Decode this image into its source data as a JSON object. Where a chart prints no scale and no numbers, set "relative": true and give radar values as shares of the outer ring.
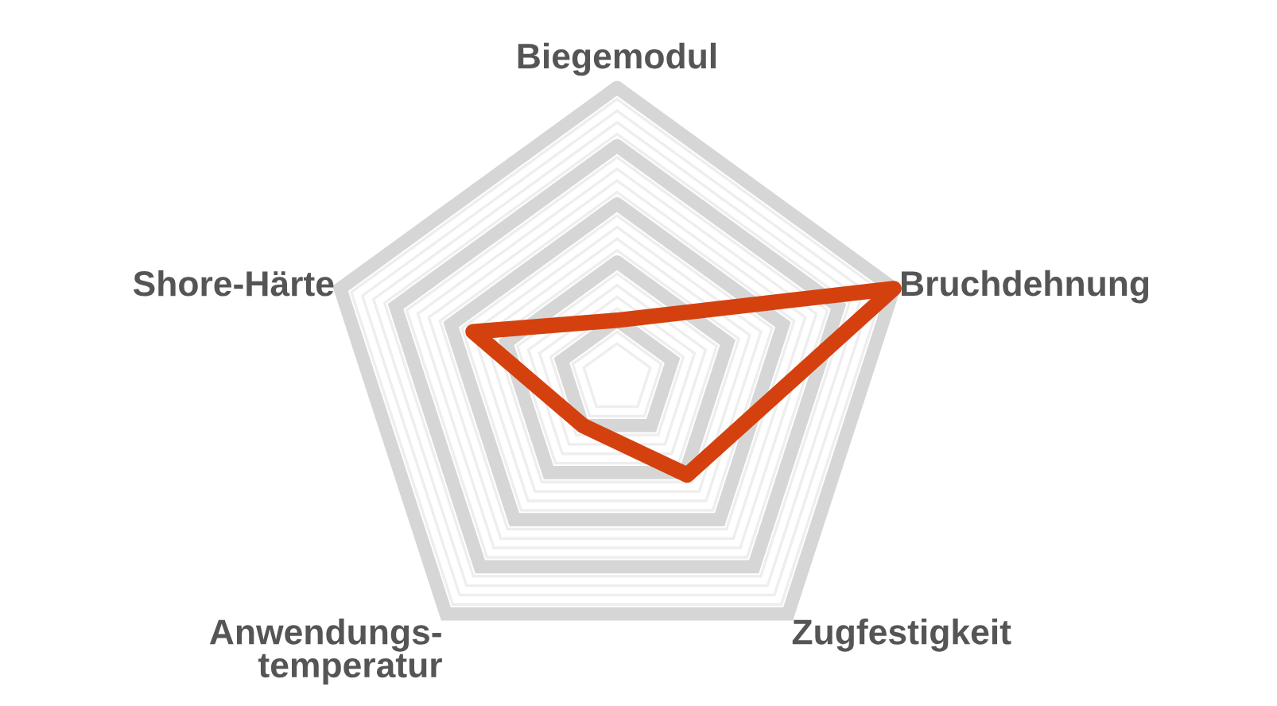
{
  "chart_data": {
    "type": "radar",
    "relative": true,
    "grid": true,
    "categories": [
      "Biegemodul",
      "Bruchdehnung",
      "Zugfestigkeit",
      "Anwendungs-\ntemperatur",
      "Shore-Härte"
    ],
    "series": [
      {
        "color": "#d4410f",
        "values": [
          0.2,
          1.0,
          0.41,
          0.2,
          0.52
        ]
      }
    ]
  }
}
